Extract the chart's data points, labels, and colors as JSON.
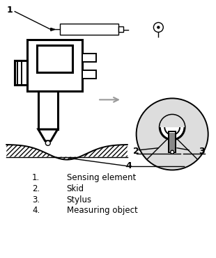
{
  "bg_color": "#ffffff",
  "line_color": "#000000",
  "gray_color": "#999999",
  "legend_items": [
    {
      "num": "1.",
      "label": "Sensing element"
    },
    {
      "num": "2.",
      "label": "Skid"
    },
    {
      "num": "3.",
      "label": "Stylus"
    },
    {
      "num": "4.",
      "label": "Measuring object"
    }
  ],
  "legend_fontsize": 8.5
}
